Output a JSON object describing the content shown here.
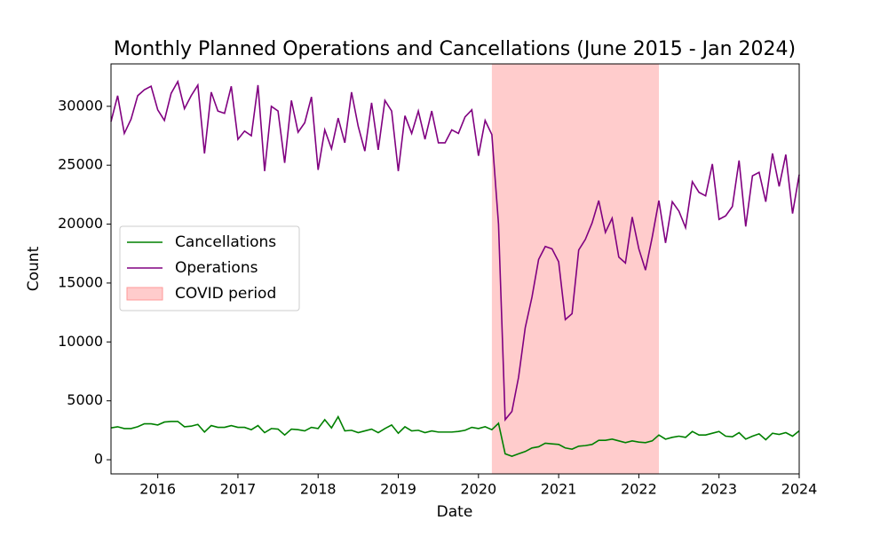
{
  "chart_data": {
    "type": "line",
    "title": "Monthly Planned Operations and Cancellations (June 2015 - Jan 2024)",
    "x_label": "Date",
    "y_label": "Count",
    "x": [
      2015.417,
      2015.5,
      2015.583,
      2015.667,
      2015.75,
      2015.833,
      2015.917,
      2016,
      2016.083,
      2016.167,
      2016.25,
      2016.333,
      2016.417,
      2016.5,
      2016.583,
      2016.667,
      2016.75,
      2016.833,
      2016.917,
      2017,
      2017.083,
      2017.167,
      2017.25,
      2017.333,
      2017.417,
      2017.5,
      2017.583,
      2017.667,
      2017.75,
      2017.833,
      2017.917,
      2018,
      2018.083,
      2018.167,
      2018.25,
      2018.333,
      2018.417,
      2018.5,
      2018.583,
      2018.667,
      2018.75,
      2018.833,
      2018.917,
      2019,
      2019.083,
      2019.167,
      2019.25,
      2019.333,
      2019.417,
      2019.5,
      2019.583,
      2019.667,
      2019.75,
      2019.833,
      2019.917,
      2020,
      2020.083,
      2020.167,
      2020.25,
      2020.333,
      2020.417,
      2020.5,
      2020.583,
      2020.667,
      2020.75,
      2020.833,
      2020.917,
      2021,
      2021.083,
      2021.167,
      2021.25,
      2021.333,
      2021.417,
      2021.5,
      2021.583,
      2021.667,
      2021.75,
      2021.833,
      2021.917,
      2022,
      2022.083,
      2022.167,
      2022.25,
      2022.333,
      2022.417,
      2022.5,
      2022.583,
      2022.667,
      2022.75,
      2022.833,
      2022.917,
      2023,
      2023.083,
      2023.167,
      2023.25,
      2023.333,
      2023.417,
      2023.5,
      2023.583,
      2023.667,
      2023.75,
      2023.833,
      2023.917,
      2024
    ],
    "series": [
      {
        "name": "Cancellations",
        "color": "#008000",
        "values": [
          2700,
          2800,
          2650,
          2650,
          2800,
          3050,
          3050,
          2950,
          3200,
          3250,
          3250,
          2800,
          2850,
          3000,
          2350,
          2900,
          2750,
          2750,
          2900,
          2750,
          2750,
          2550,
          2900,
          2300,
          2650,
          2600,
          2100,
          2600,
          2550,
          2450,
          2750,
          2650,
          3400,
          2700,
          3650,
          2450,
          2500,
          2300,
          2450,
          2600,
          2300,
          2650,
          2950,
          2250,
          2800,
          2450,
          2500,
          2300,
          2450,
          2350,
          2350,
          2350,
          2400,
          2500,
          2750,
          2650,
          2800,
          2550,
          3100,
          500,
          300,
          500,
          700,
          1000,
          1100,
          1400,
          1350,
          1300,
          1000,
          900,
          1150,
          1200,
          1300,
          1650,
          1650,
          1750,
          1600,
          1450,
          1600,
          1500,
          1450,
          1600,
          2100,
          1750,
          1900,
          2000,
          1900,
          2400,
          2100,
          2100,
          2250,
          2400,
          2000,
          1950,
          2300,
          1750,
          2000,
          2200,
          1700,
          2250,
          2150,
          2300,
          2000,
          2450
        ]
      },
      {
        "name": "Operations",
        "color": "#800080",
        "values": [
          28700,
          30900,
          27700,
          28900,
          30900,
          31400,
          31700,
          29700,
          28800,
          31100,
          32100,
          29800,
          30900,
          31800,
          26000,
          31200,
          29600,
          29400,
          31700,
          27200,
          27900,
          27500,
          31800,
          24500,
          30000,
          29600,
          25200,
          30500,
          27800,
          28600,
          30800,
          24600,
          28000,
          26400,
          29000,
          26900,
          31200,
          28300,
          26200,
          30300,
          26300,
          30500,
          29600,
          24500,
          29200,
          27700,
          29600,
          27200,
          29600,
          26900,
          26900,
          28000,
          27700,
          29100,
          29700,
          25800,
          28800,
          27600,
          20000,
          3400,
          4100,
          7000,
          11200,
          13800,
          17000,
          18100,
          17900,
          16800,
          11900,
          12400,
          17800,
          18700,
          20100,
          22000,
          19300,
          20500,
          17200,
          16700,
          20600,
          17900,
          16100,
          18900,
          22000,
          18400,
          21900,
          21100,
          19700,
          23600,
          22700,
          22400,
          25100,
          20400,
          20700,
          21500,
          25400,
          19800,
          24100,
          24400,
          21900,
          26000,
          23200,
          25900,
          20900,
          24200
        ]
      }
    ],
    "spans": [
      {
        "name": "COVID period",
        "color": "#ff9999",
        "x": [
          2020.167,
          2022.25
        ]
      }
    ],
    "xlim": [
      2015.417,
      2024
    ],
    "ylim": [
      -1200,
      33600
    ],
    "xticks": [
      2016,
      2017,
      2018,
      2019,
      2020,
      2021,
      2022,
      2023,
      2024
    ],
    "yticks": [
      0,
      5000,
      10000,
      15000,
      20000,
      25000,
      30000
    ],
    "legend": "center left"
  }
}
